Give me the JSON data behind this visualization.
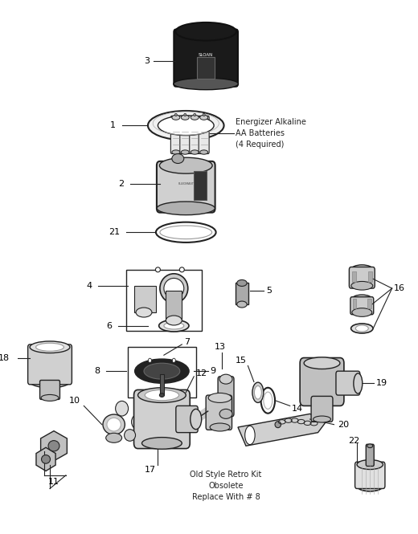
{
  "bg_color": "#ffffff",
  "line_color": "#222222",
  "dark_color": "#111111",
  "gray_color": "#888888",
  "light_gray": "#cccccc",
  "figsize": [
    5.2,
    6.65
  ],
  "dpi": 100,
  "battery_text": "Energizer Alkaline\nAA Batteries\n(4 Required)",
  "retro_text": "Old Style Retro Kit\nObsolete\nReplace With # 8"
}
